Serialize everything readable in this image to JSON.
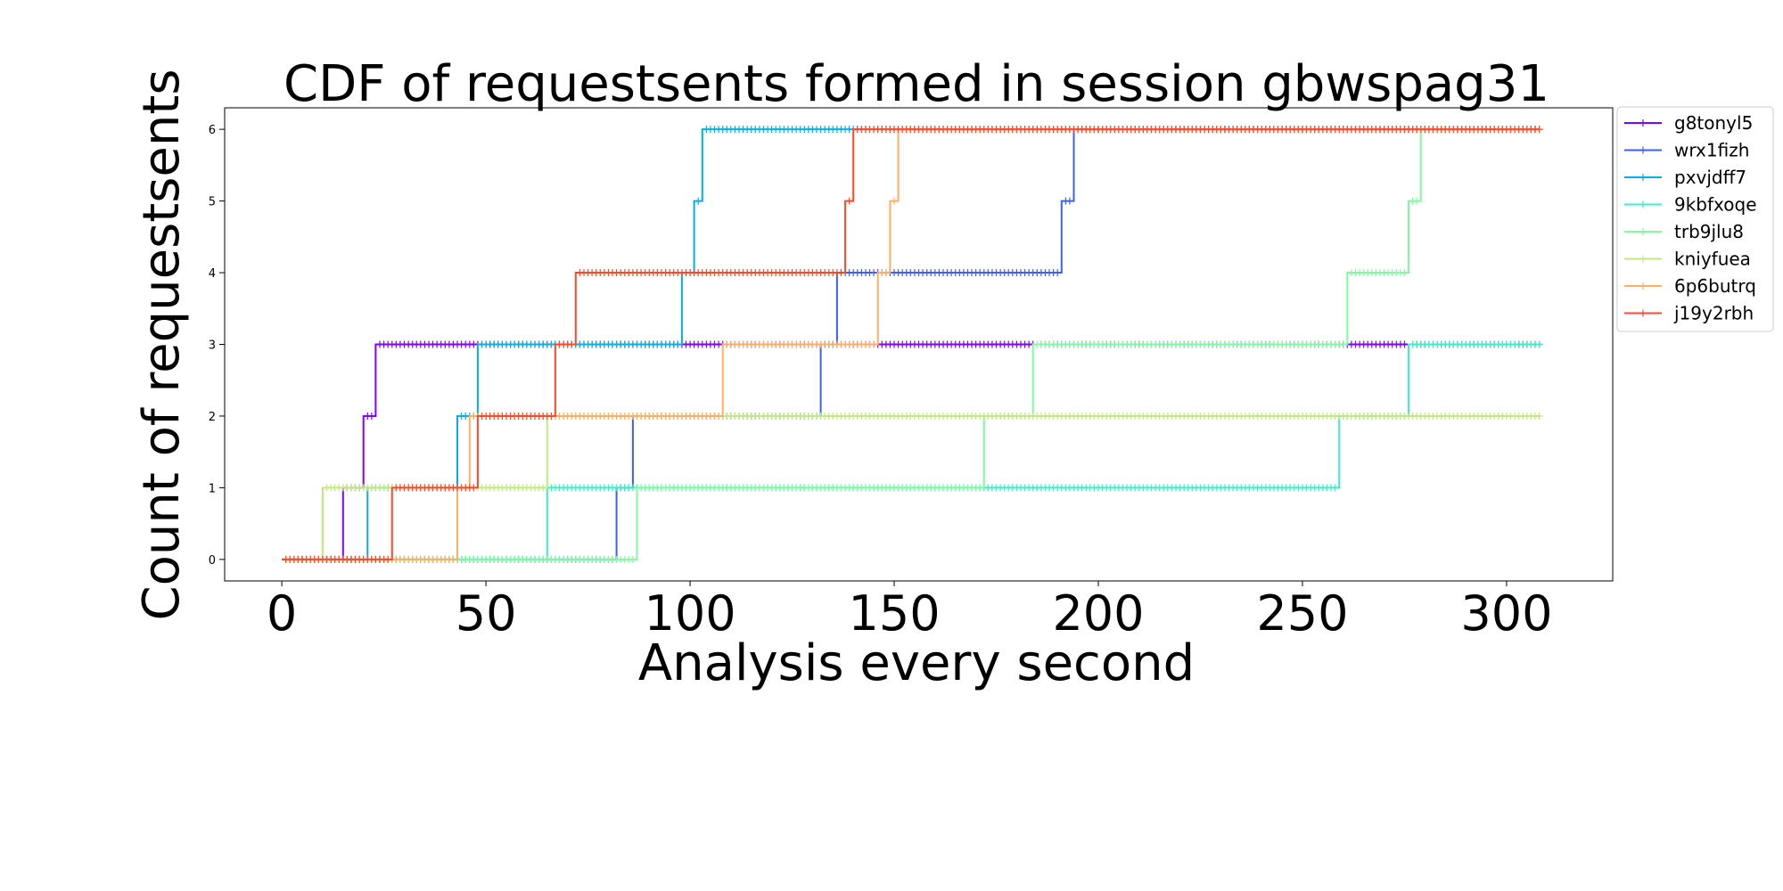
{
  "chart_data": {
    "type": "line",
    "step": true,
    "title": "CDF of requestsents formed in session gbwspag31",
    "xlabel": "Analysis every second",
    "ylabel": "Count of requestsents",
    "xlim": [
      -14,
      326
    ],
    "ylim": [
      -0.3,
      6.3
    ],
    "xticks": [
      0,
      50,
      100,
      150,
      200,
      250,
      300
    ],
    "yticks": [
      0,
      1,
      2,
      3,
      4,
      5,
      6
    ],
    "x_end": 308,
    "grid": false,
    "legend_position": "upper-right-outside",
    "series": [
      {
        "name": "g8tonyl5",
        "color": "#8000ff",
        "steps": [
          [
            0,
            0
          ],
          [
            15,
            1
          ],
          [
            20,
            2
          ],
          [
            23,
            3
          ],
          [
            185,
            3
          ],
          [
            276,
            3
          ]
        ]
      },
      {
        "name": "wrx1fizh",
        "color": "#3f5ffa",
        "steps": [
          [
            0,
            0
          ],
          [
            82,
            1
          ],
          [
            86,
            2
          ],
          [
            132,
            3
          ],
          [
            136,
            4
          ],
          [
            191,
            5
          ],
          [
            194,
            6
          ]
        ]
      },
      {
        "name": "pxvjdff7",
        "color": "#06aee8",
        "steps": [
          [
            0,
            0
          ],
          [
            21,
            1
          ],
          [
            43,
            2
          ],
          [
            48,
            3
          ],
          [
            98,
            4
          ],
          [
            101,
            5
          ],
          [
            103,
            6
          ]
        ]
      },
      {
        "name": "9kbfxoqe",
        "color": "#3af0c4",
        "steps": [
          [
            0,
            0
          ],
          [
            65,
            1
          ],
          [
            259,
            2
          ],
          [
            276,
            3
          ]
        ]
      },
      {
        "name": "trb9jlu8",
        "color": "#7ffd9e",
        "steps": [
          [
            0,
            0
          ],
          [
            87,
            1
          ],
          [
            172,
            2
          ],
          [
            184,
            3
          ],
          [
            261,
            4
          ],
          [
            276,
            5
          ],
          [
            279,
            6
          ]
        ]
      },
      {
        "name": "kniyfuea",
        "color": "#c0ea7c",
        "steps": [
          [
            0,
            0
          ],
          [
            10,
            1
          ],
          [
            65,
            2
          ]
        ]
      },
      {
        "name": "6p6butrq",
        "color": "#ffae62",
        "steps": [
          [
            0,
            0
          ],
          [
            43,
            1
          ],
          [
            46,
            2
          ],
          [
            108,
            3
          ],
          [
            146,
            4
          ],
          [
            149,
            5
          ],
          [
            151,
            6
          ]
        ]
      },
      {
        "name": "j19y2rbh",
        "color": "#ff4a24",
        "steps": [
          [
            0,
            0
          ],
          [
            27,
            1
          ],
          [
            48,
            2
          ],
          [
            67,
            3
          ],
          [
            72,
            4
          ],
          [
            138,
            5
          ],
          [
            140,
            6
          ]
        ]
      }
    ]
  }
}
